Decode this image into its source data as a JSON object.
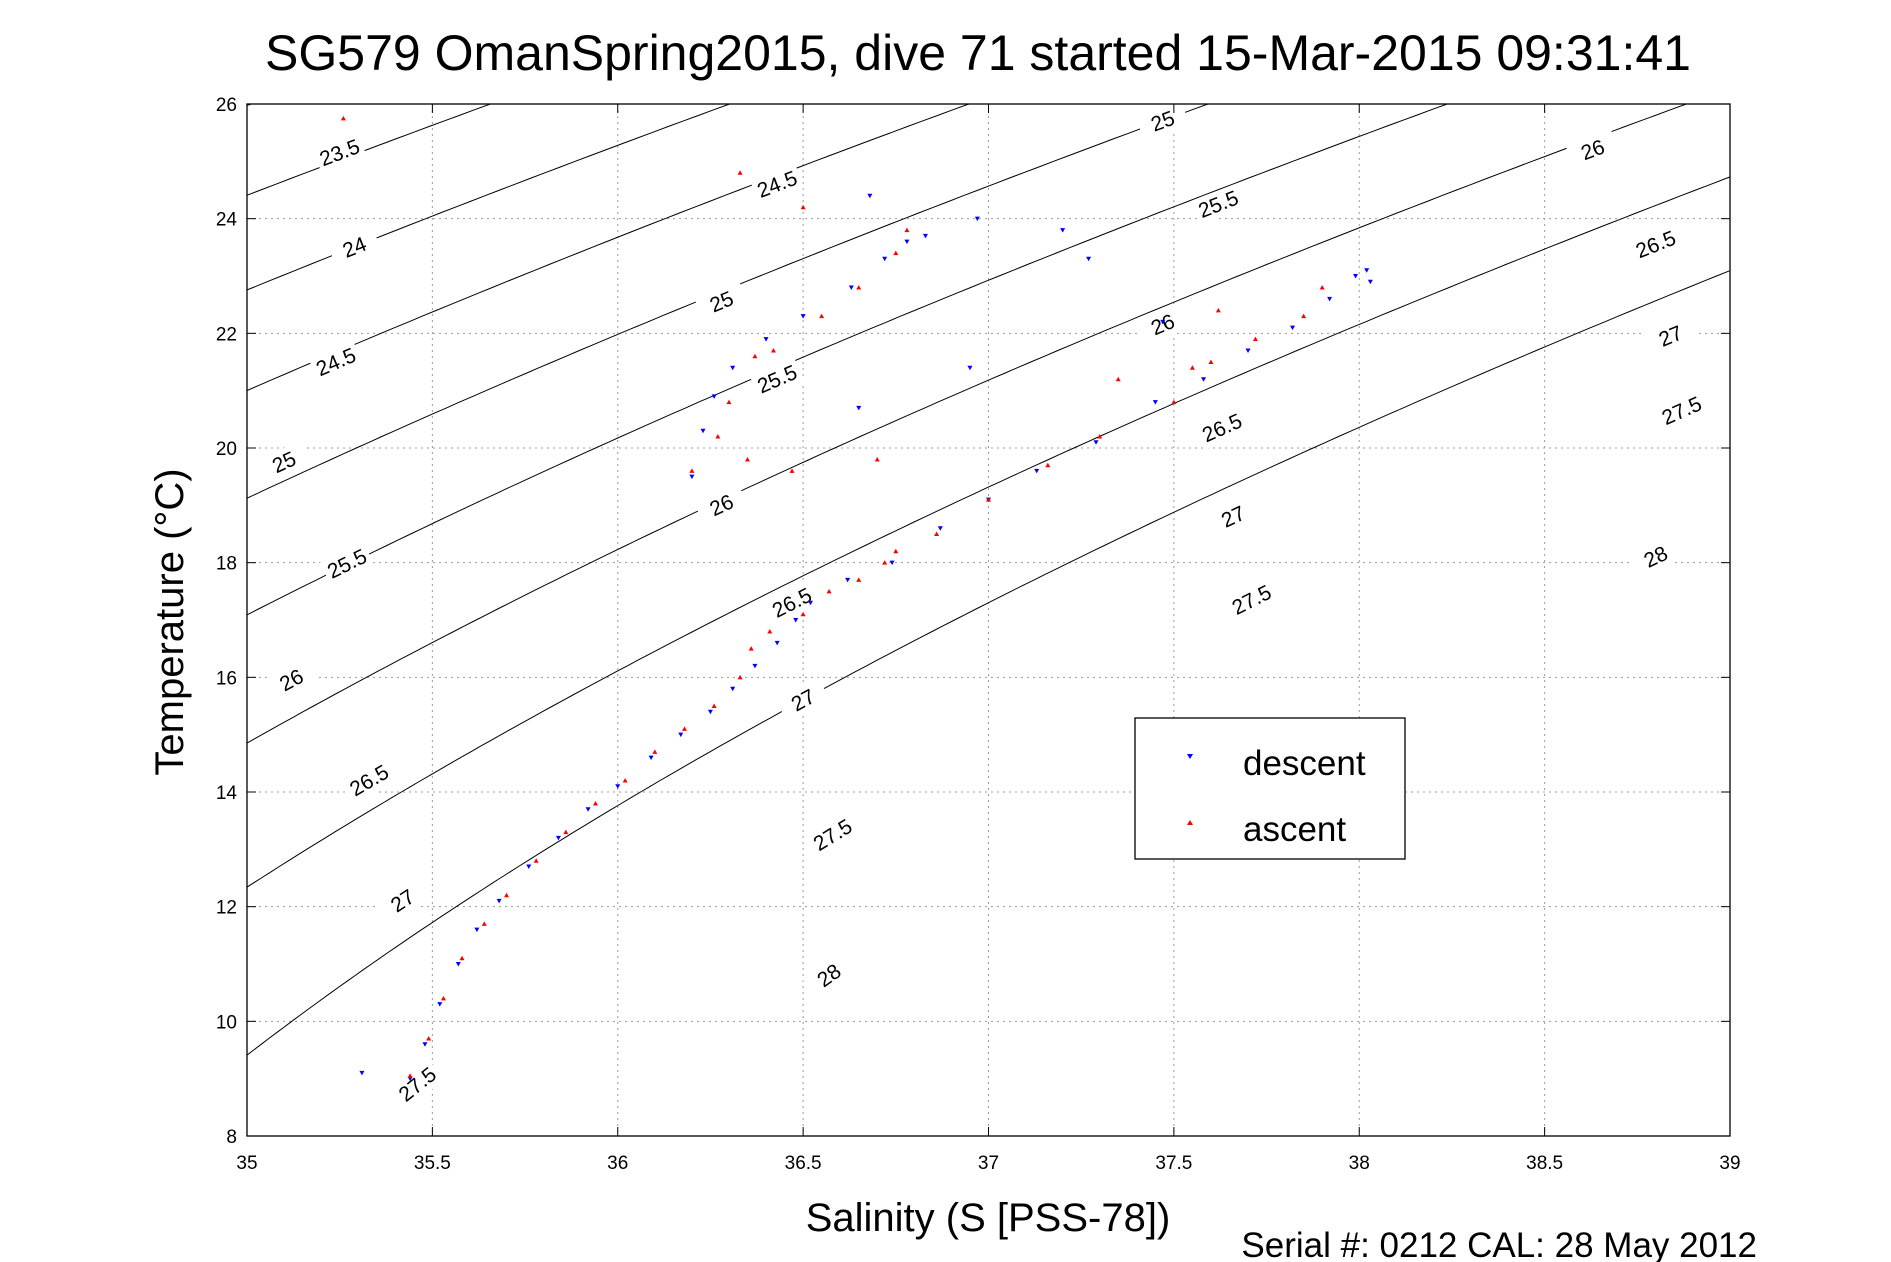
{
  "chart_data": {
    "type": "scatter",
    "title": "SG579 OmanSpring2015, dive 71 started 15-Mar-2015 09:31:41",
    "xlabel": "Salinity (S [PSS-78])",
    "ylabel": "Temperature (°C)",
    "footer": "Serial #: 0212  CAL: 28 May 2012",
    "xlim": [
      35,
      39
    ],
    "ylim": [
      8,
      26
    ],
    "xticks": [
      "35",
      "35.5",
      "36",
      "36.5",
      "37",
      "37.5",
      "38",
      "38.5",
      "39"
    ],
    "yticks": [
      "8",
      "10",
      "12",
      "14",
      "16",
      "18",
      "20",
      "22",
      "24",
      "26"
    ],
    "grid": true,
    "legend_position": "right-center",
    "series": [
      {
        "name": "descent",
        "color": "#0000ff",
        "marker": "triangle-down",
        "points": [
          [
            35.44,
            9.0
          ],
          [
            35.48,
            9.6
          ],
          [
            35.52,
            10.3
          ],
          [
            35.57,
            11.0
          ],
          [
            35.62,
            11.6
          ],
          [
            35.68,
            12.1
          ],
          [
            35.76,
            12.7
          ],
          [
            35.84,
            13.2
          ],
          [
            35.92,
            13.7
          ],
          [
            36.0,
            14.1
          ],
          [
            36.09,
            14.6
          ],
          [
            36.17,
            15.0
          ],
          [
            36.25,
            15.4
          ],
          [
            36.31,
            15.8
          ],
          [
            36.37,
            16.2
          ],
          [
            36.43,
            16.6
          ],
          [
            36.48,
            17.0
          ],
          [
            36.52,
            17.3
          ],
          [
            36.62,
            17.7
          ],
          [
            36.74,
            18.0
          ],
          [
            36.87,
            18.6
          ],
          [
            37.0,
            19.1
          ],
          [
            37.13,
            19.6
          ],
          [
            37.29,
            20.1
          ],
          [
            37.45,
            20.8
          ],
          [
            37.58,
            21.2
          ],
          [
            37.7,
            21.7
          ],
          [
            37.82,
            22.1
          ],
          [
            37.92,
            22.6
          ],
          [
            37.99,
            23.0
          ],
          [
            38.02,
            23.1
          ],
          [
            38.03,
            22.9
          ],
          [
            36.2,
            19.5
          ],
          [
            36.23,
            20.3
          ],
          [
            36.26,
            20.9
          ],
          [
            36.31,
            21.4
          ],
          [
            36.4,
            21.9
          ],
          [
            36.5,
            22.3
          ],
          [
            36.63,
            22.8
          ],
          [
            36.72,
            23.3
          ],
          [
            36.78,
            23.6
          ],
          [
            36.83,
            23.7
          ],
          [
            35.31,
            9.1
          ],
          [
            36.68,
            24.4
          ],
          [
            36.97,
            24.0
          ],
          [
            37.2,
            23.8
          ],
          [
            37.27,
            23.3
          ],
          [
            36.65,
            20.7
          ],
          [
            36.95,
            21.4
          ],
          [
            37.47,
            22.2
          ]
        ]
      },
      {
        "name": "ascent",
        "color": "#ff0000",
        "marker": "triangle-up",
        "points": [
          [
            35.44,
            9.05
          ],
          [
            35.49,
            9.7
          ],
          [
            35.53,
            10.4
          ],
          [
            35.58,
            11.1
          ],
          [
            35.64,
            11.7
          ],
          [
            35.7,
            12.2
          ],
          [
            35.78,
            12.8
          ],
          [
            35.86,
            13.3
          ],
          [
            35.94,
            13.8
          ],
          [
            36.02,
            14.2
          ],
          [
            36.1,
            14.7
          ],
          [
            36.18,
            15.1
          ],
          [
            36.26,
            15.5
          ],
          [
            36.33,
            16.0
          ],
          [
            36.36,
            16.5
          ],
          [
            36.41,
            16.8
          ],
          [
            36.5,
            17.1
          ],
          [
            36.57,
            17.5
          ],
          [
            36.72,
            18.0
          ],
          [
            36.86,
            18.5
          ],
          [
            37.0,
            19.1
          ],
          [
            37.16,
            19.7
          ],
          [
            37.3,
            20.2
          ],
          [
            37.5,
            20.8
          ],
          [
            37.6,
            21.5
          ],
          [
            37.72,
            21.9
          ],
          [
            37.85,
            22.3
          ],
          [
            37.9,
            22.8
          ],
          [
            36.2,
            19.6
          ],
          [
            36.27,
            20.2
          ],
          [
            36.3,
            20.8
          ],
          [
            36.37,
            21.6
          ],
          [
            36.42,
            21.7
          ],
          [
            36.55,
            22.3
          ],
          [
            36.65,
            22.8
          ],
          [
            36.75,
            23.4
          ],
          [
            36.78,
            23.8
          ],
          [
            35.26,
            25.75
          ],
          [
            36.33,
            24.8
          ],
          [
            36.5,
            24.2
          ],
          [
            36.35,
            19.8
          ],
          [
            36.47,
            19.6
          ],
          [
            36.7,
            19.8
          ],
          [
            37.35,
            21.2
          ],
          [
            37.62,
            22.4
          ],
          [
            36.75,
            18.2
          ],
          [
            36.65,
            17.7
          ],
          [
            37.55,
            21.4
          ]
        ]
      }
    ],
    "contours": [
      {
        "sigma": 23.5,
        "labels": [
          [
            35.25,
            25.15
          ]
        ]
      },
      {
        "sigma": 24,
        "labels": [
          [
            35.29,
            23.5
          ]
        ]
      },
      {
        "sigma": 24.5,
        "labels": [
          [
            35.24,
            21.5
          ],
          [
            36.43,
            24.6
          ]
        ]
      },
      {
        "sigma": 25,
        "labels": [
          [
            35.1,
            19.75
          ],
          [
            36.28,
            22.55
          ],
          [
            37.47,
            25.7
          ]
        ]
      },
      {
        "sigma": 25.5,
        "labels": [
          [
            35.27,
            17.98
          ],
          [
            36.43,
            21.2
          ],
          [
            37.62,
            24.25
          ]
        ]
      },
      {
        "sigma": 26,
        "labels": [
          [
            35.12,
            15.95
          ],
          [
            36.28,
            19.0
          ],
          [
            37.47,
            22.15
          ],
          [
            38.63,
            25.2
          ]
        ]
      },
      {
        "sigma": 26.5,
        "labels": [
          [
            35.33,
            14.2
          ],
          [
            36.47,
            17.3
          ],
          [
            37.63,
            20.35
          ],
          [
            38.8,
            23.55
          ]
        ]
      },
      {
        "sigma": 27,
        "labels": [
          [
            35.42,
            12.1
          ],
          [
            36.5,
            15.6
          ],
          [
            37.66,
            18.8
          ],
          [
            38.84,
            21.95
          ]
        ]
      },
      {
        "sigma": 27.5,
        "labels": [
          [
            35.46,
            8.9
          ],
          [
            36.58,
            13.25
          ],
          [
            37.71,
            17.35
          ],
          [
            38.87,
            20.65
          ]
        ]
      },
      {
        "sigma": 28,
        "labels": [
          [
            36.57,
            10.8
          ],
          [
            38.8,
            18.1
          ]
        ]
      }
    ]
  }
}
